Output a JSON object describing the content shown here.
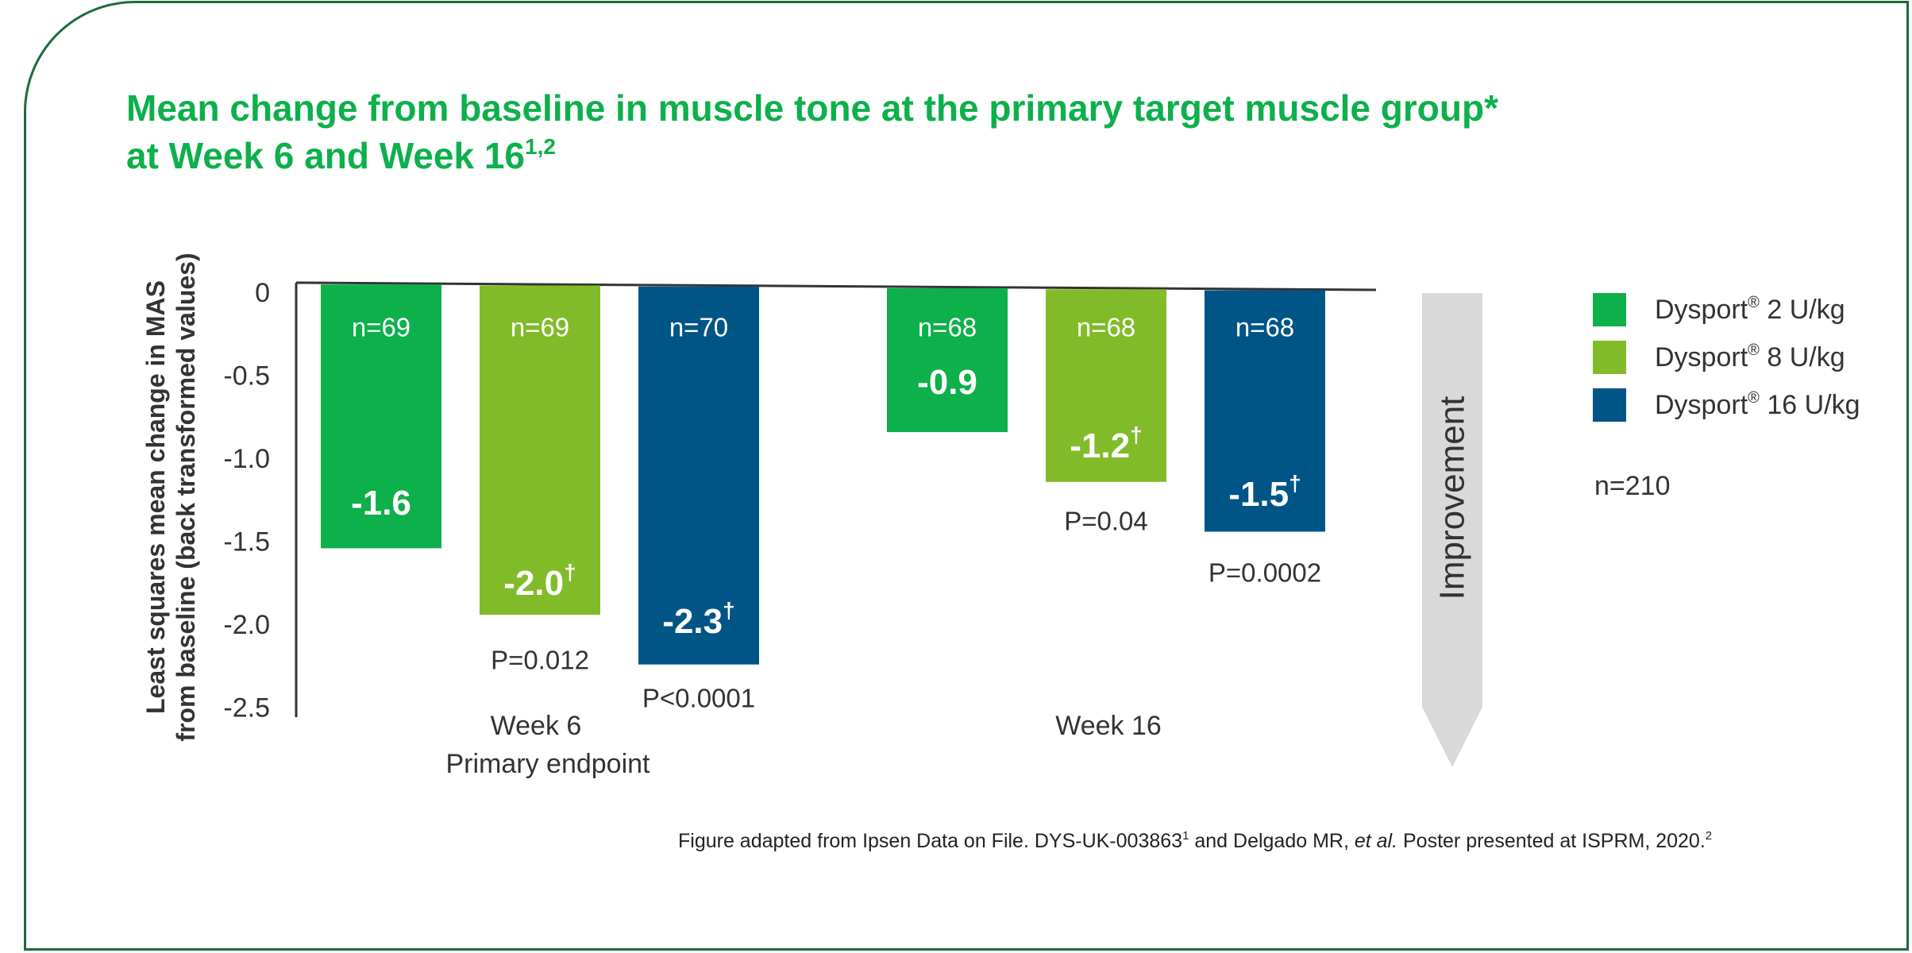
{
  "title": {
    "line1": "Mean change from baseline in muscle tone at the primary target muscle group*",
    "line2": "at Week 6 and Week 16",
    "line2_superscript": "1,2"
  },
  "colors": {
    "border": "#1a6b3c",
    "title": "#0db04b",
    "dose_2": "#0db04b",
    "dose_8": "#82bb29",
    "dose_16": "#005587",
    "arrow": "#d9d9d9"
  },
  "chart_data": {
    "type": "bar",
    "title": "Mean change from baseline in muscle tone at the primary target muscle group* at Week 6 and Week 16",
    "ylabel_line1": "Least squares mean change in MAS",
    "ylabel_line2": "from baseline (back transformed values)",
    "ylim": [
      -2.5,
      0
    ],
    "yticks": [
      "0",
      "-0.5",
      "-1.0",
      "-1.5",
      "-2.0",
      "-2.5"
    ],
    "ytick_values": [
      0,
      -0.5,
      -1.0,
      -1.5,
      -2.0,
      -2.5
    ],
    "grid": false,
    "legend_position": "right",
    "categories": [
      "Week 6",
      "Week 16"
    ],
    "category_sublabels": [
      "Primary endpoint",
      ""
    ],
    "series": [
      {
        "name": "Dysport",
        "dose": "2 U/kg",
        "color": "#0db04b",
        "values": [
          -1.6,
          -0.9
        ],
        "value_labels": [
          "-1.6",
          "-0.9"
        ],
        "dagger": [
          false,
          false
        ],
        "n": [
          "n=69",
          "n=68"
        ],
        "p": [
          "",
          ""
        ]
      },
      {
        "name": "Dysport",
        "dose": "8 U/kg",
        "color": "#82bb29",
        "values": [
          -2.0,
          -1.2
        ],
        "value_labels": [
          "-2.0",
          "-1.2"
        ],
        "dagger": [
          true,
          true
        ],
        "n": [
          "n=69",
          "n=68"
        ],
        "p": [
          "P=0.012",
          "P=0.04"
        ]
      },
      {
        "name": "Dysport",
        "dose": "16 U/kg",
        "color": "#005587",
        "values": [
          -2.3,
          -1.5
        ],
        "value_labels": [
          "-2.3",
          "-1.5"
        ],
        "dagger": [
          true,
          true
        ],
        "n": [
          "n=70",
          "n=68"
        ],
        "p": [
          "P<0.0001",
          "P=0.0002"
        ]
      }
    ],
    "dagger_symbol": "†",
    "arrow_label": "Improvement"
  },
  "legend": {
    "items": [
      {
        "brand": "Dysport",
        "mark": "®",
        "dose": "2 U/kg"
      },
      {
        "brand": "Dysport",
        "mark": "®",
        "dose": "8 U/kg"
      },
      {
        "brand": "Dysport",
        "mark": "®",
        "dose": "16 U/kg"
      }
    ],
    "total_n": "n=210"
  },
  "footnote": {
    "part1": "Figure adapted from Ipsen Data on File. DYS-UK-003863",
    "sup1": "1",
    "part2": " and Delgado MR, ",
    "italic": "et al.",
    "part3": " Poster presented at ISPRM, 2020.",
    "sup2": "2"
  }
}
